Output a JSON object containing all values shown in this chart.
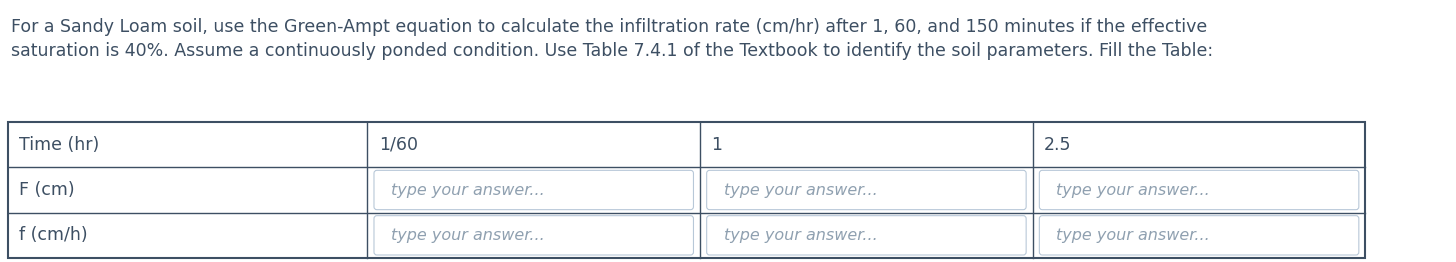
{
  "description_lines": [
    "For a Sandy Loam soil, use the Green-Ampt equation to calculate the infiltration rate (cm/hr) after 1, 60, and 150 minutes if the effective",
    "saturation is 40%. Assume a continuously ponded condition. Use Table 7.4.1 of the Textbook to identify the soil parameters. Fill the Table:"
  ],
  "table": {
    "row_labels": [
      "Time (hr)",
      "F (cm)",
      "f (cm/h)"
    ],
    "col_values": [
      "1/60",
      "1",
      "2.5"
    ],
    "answer_placeholder": "type your answer..."
  },
  "text_color": "#3d4f63",
  "placeholder_color": "#8fa0b0",
  "bg_color": "#ffffff",
  "table_line_color": "#3d4f63",
  "input_box_bg": "#ffffff",
  "input_box_border": "#b8c8d8",
  "font_size_desc": 12.5,
  "font_size_table": 12.5,
  "font_size_placeholder": 11.5
}
